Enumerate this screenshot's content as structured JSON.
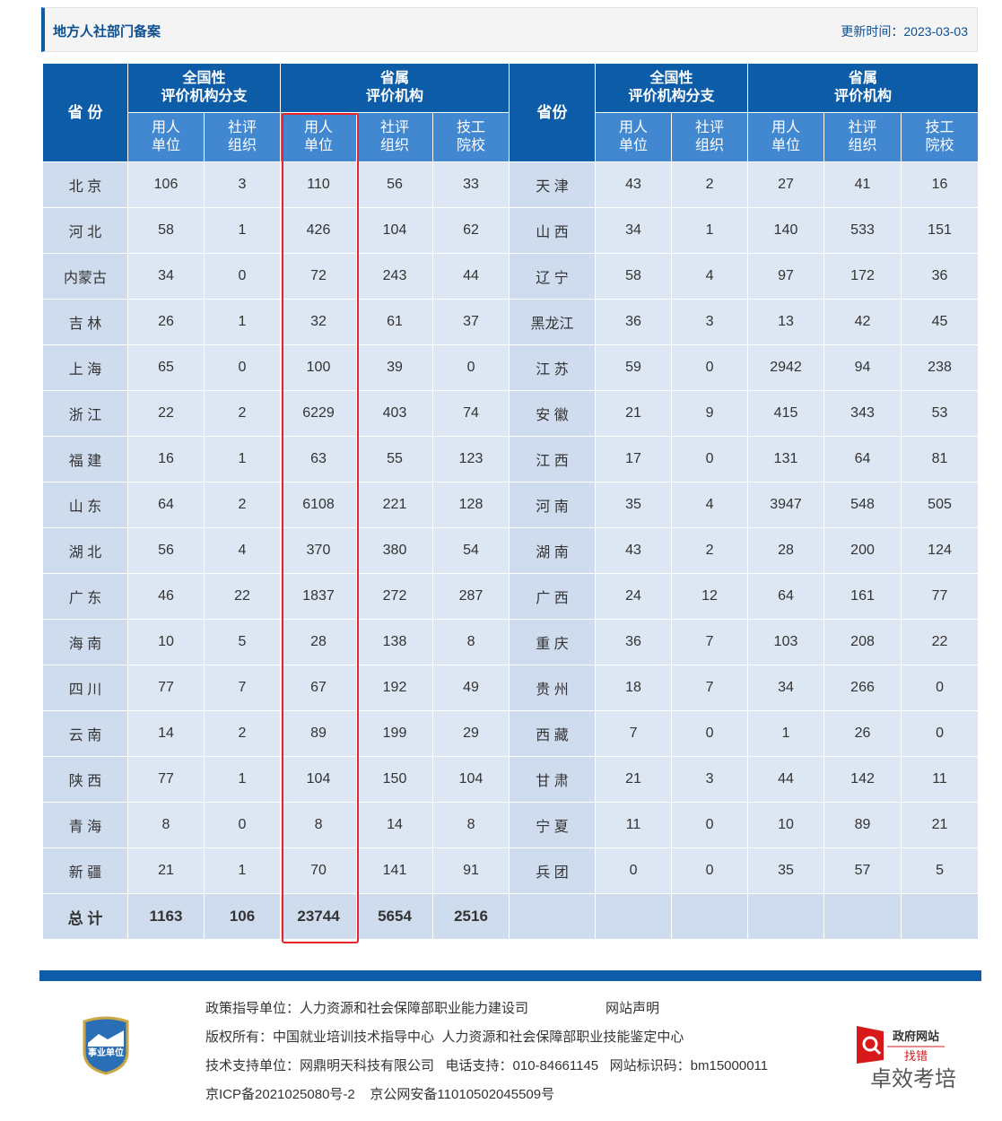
{
  "header": {
    "title": "地方人社部门备案",
    "update_label": "更新时间：",
    "update_date": "2023-03-03"
  },
  "table": {
    "left": {
      "province_header": "省 份",
      "groups": [
        {
          "title": [
            "全国性",
            "评价机构分支"
          ],
          "columns": [
            [
              "用人",
              "单位"
            ],
            [
              "社评",
              "组织"
            ]
          ]
        },
        {
          "title": [
            "省属",
            "评价机构"
          ],
          "columns": [
            [
              "用人",
              "单位"
            ],
            [
              "社评",
              "组织"
            ],
            [
              "技工",
              "院校"
            ]
          ]
        }
      ],
      "rows": [
        [
          "北 京",
          106,
          3,
          110,
          56,
          33
        ],
        [
          "河 北",
          58,
          1,
          426,
          104,
          62
        ],
        [
          "内蒙古",
          34,
          0,
          72,
          243,
          44
        ],
        [
          "吉 林",
          26,
          1,
          32,
          61,
          37
        ],
        [
          "上 海",
          65,
          0,
          100,
          39,
          0
        ],
        [
          "浙 江",
          22,
          2,
          6229,
          403,
          74
        ],
        [
          "福 建",
          16,
          1,
          63,
          55,
          123
        ],
        [
          "山 东",
          64,
          2,
          6108,
          221,
          128
        ],
        [
          "湖 北",
          56,
          4,
          370,
          380,
          54
        ],
        [
          "广 东",
          46,
          22,
          1837,
          272,
          287
        ],
        [
          "海 南",
          10,
          5,
          28,
          138,
          8
        ],
        [
          "四 川",
          77,
          7,
          67,
          192,
          49
        ],
        [
          "云 南",
          14,
          2,
          89,
          199,
          29
        ],
        [
          "陕 西",
          77,
          1,
          104,
          150,
          104
        ],
        [
          "青 海",
          8,
          0,
          8,
          14,
          8
        ],
        [
          "新 疆",
          21,
          1,
          70,
          141,
          91
        ]
      ]
    },
    "right": {
      "province_header": "省份",
      "groups": [
        {
          "title": [
            "全国性",
            "评价机构分支"
          ],
          "columns": [
            [
              "用人",
              "单位"
            ],
            [
              "社评",
              "组织"
            ]
          ]
        },
        {
          "title": [
            "省属",
            "评价机构"
          ],
          "columns": [
            [
              "用人",
              "单位"
            ],
            [
              "社评",
              "组织"
            ],
            [
              "技工",
              "院校"
            ]
          ]
        }
      ],
      "rows": [
        [
          "天 津",
          43,
          2,
          27,
          41,
          16
        ],
        [
          "山 西",
          34,
          1,
          140,
          533,
          151
        ],
        [
          "辽 宁",
          58,
          4,
          97,
          172,
          36
        ],
        [
          "黑龙江",
          36,
          3,
          13,
          42,
          45
        ],
        [
          "江 苏",
          59,
          0,
          2942,
          94,
          238
        ],
        [
          "安 徽",
          21,
          9,
          415,
          343,
          53
        ],
        [
          "江 西",
          17,
          0,
          131,
          64,
          81
        ],
        [
          "河 南",
          35,
          4,
          3947,
          548,
          505
        ],
        [
          "湖 南",
          43,
          2,
          28,
          200,
          124
        ],
        [
          "广 西",
          24,
          12,
          64,
          161,
          77
        ],
        [
          "重 庆",
          36,
          7,
          103,
          208,
          22
        ],
        [
          "贵 州",
          18,
          7,
          34,
          266,
          0
        ],
        [
          "西 藏",
          7,
          0,
          1,
          26,
          0
        ],
        [
          "甘 肃",
          21,
          3,
          44,
          142,
          11
        ],
        [
          "宁 夏",
          11,
          0,
          10,
          89,
          21
        ],
        [
          "兵 团",
          0,
          0,
          35,
          57,
          5
        ]
      ]
    },
    "total": [
      "总 计",
      1163,
      106,
      23744,
      5654,
      2516
    ]
  },
  "footer": {
    "lines": [
      "政策指导单位：人力资源和社会保障部职业能力建设司",
      "版权所有：中国就业培训技术指导中心  人力资源和社会保障部职业技能鉴定中心",
      "技术支持单位：网鼎明天科技有限公司   电话支持：010-84661145   网站标识码：bm15000011",
      "京ICP备2021025080号-2    京公网安备11010502045509号"
    ],
    "statement": "网站声明",
    "logo_text": "事业单位",
    "badge_title": "政府网站",
    "badge_action": "找错",
    "watermark": "卓效考培"
  }
}
